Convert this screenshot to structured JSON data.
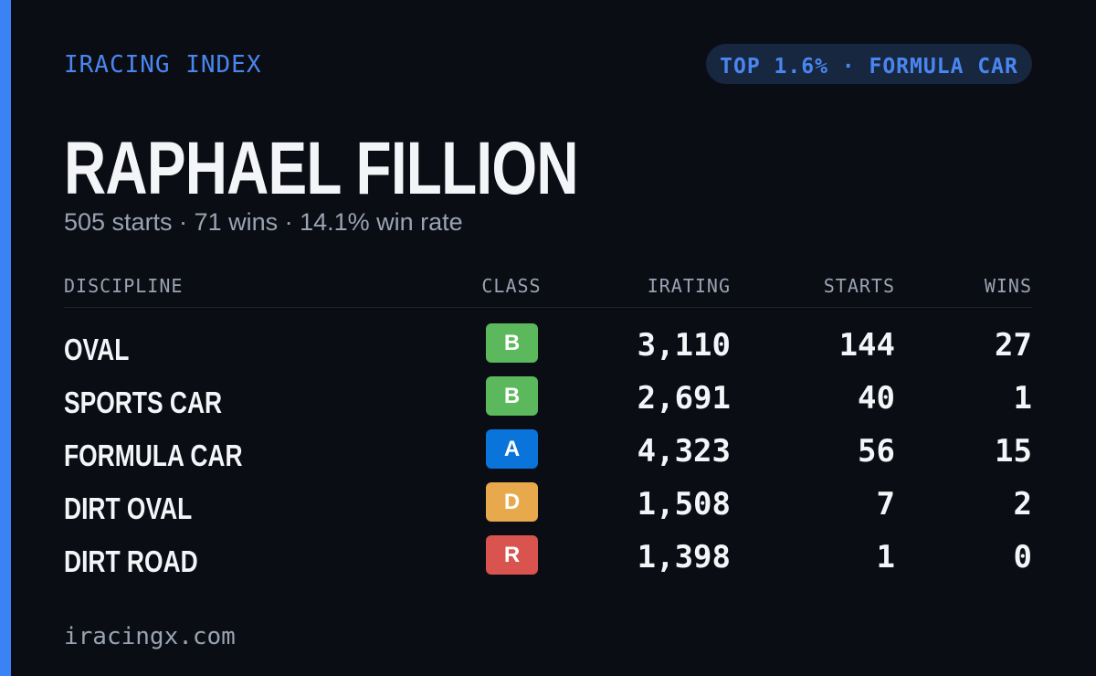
{
  "brand": "IRACING INDEX",
  "badge": "TOP 1.6% · FORMULA CAR",
  "name": "RAPHAEL FILLION",
  "subtitle": "505 starts · 71 wins · 14.1% win rate",
  "table": {
    "headers": [
      "DISCIPLINE",
      "CLASS",
      "IRATING",
      "STARTS",
      "WINS"
    ],
    "rows": [
      {
        "discipline": "OVAL",
        "class": "B",
        "class_color": "#5cb85c",
        "irating": "3,110",
        "starts": "144",
        "wins": "27"
      },
      {
        "discipline": "SPORTS CAR",
        "class": "B",
        "class_color": "#5cb85c",
        "irating": "2,691",
        "starts": "40",
        "wins": "1"
      },
      {
        "discipline": "FORMULA CAR",
        "class": "A",
        "class_color": "#0a74da",
        "irating": "4,323",
        "starts": "56",
        "wins": "15"
      },
      {
        "discipline": "DIRT OVAL",
        "class": "D",
        "class_color": "#e8a84c",
        "irating": "1,508",
        "starts": "7",
        "wins": "2"
      },
      {
        "discipline": "DIRT ROAD",
        "class": "R",
        "class_color": "#d9534f",
        "irating": "1,398",
        "starts": "1",
        "wins": "0"
      }
    ]
  },
  "footer": "iracingx.com"
}
